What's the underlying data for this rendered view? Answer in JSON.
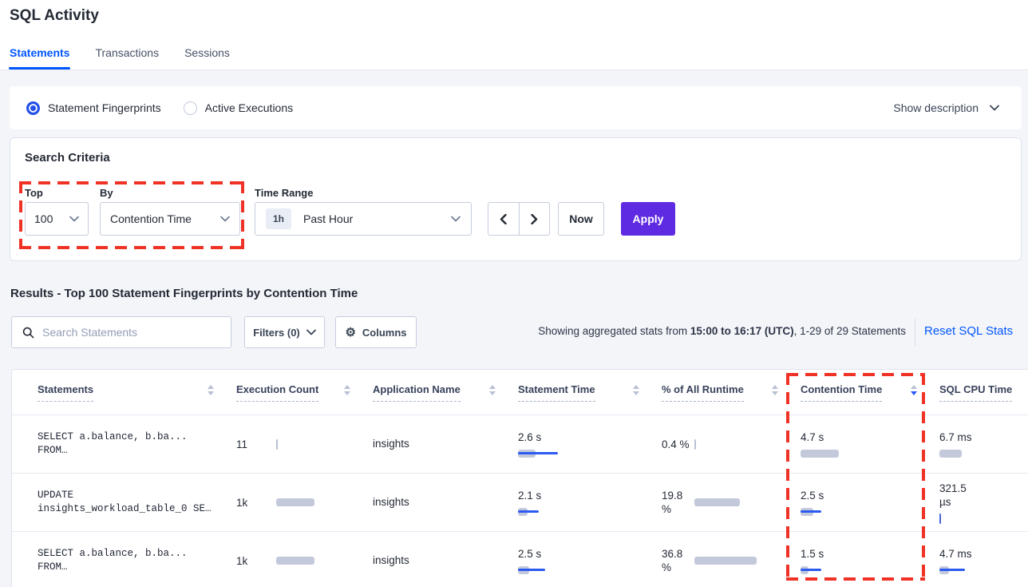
{
  "page": {
    "title": "SQL Activity"
  },
  "tabs": [
    {
      "label": "Statements",
      "active": true
    },
    {
      "label": "Transactions",
      "active": false
    },
    {
      "label": "Sessions",
      "active": false
    }
  ],
  "view_toggle": {
    "options": [
      {
        "label": "Statement Fingerprints",
        "selected": true
      },
      {
        "label": "Active Executions",
        "selected": false
      }
    ],
    "show_description_label": "Show description"
  },
  "search_criteria": {
    "title": "Search Criteria",
    "top": {
      "label": "Top",
      "value": "100"
    },
    "by": {
      "label": "By",
      "value": "Contention Time"
    },
    "time_range": {
      "label": "Time Range",
      "badge": "1h",
      "value": "Past Hour"
    },
    "now_label": "Now",
    "apply_label": "Apply"
  },
  "results": {
    "heading": "Results - Top 100 Statement Fingerprints by Contention Time",
    "search_placeholder": "Search Statements",
    "filters_label": "Filters (0)",
    "columns_label": "Columns",
    "stats": {
      "prefix": "Showing aggregated stats from ",
      "range": "15:00 to 16:17 (UTC)",
      "suffix": ", 1-29 of 29 Statements"
    },
    "reset_label": "Reset SQL Stats"
  },
  "table": {
    "headers": [
      {
        "label": "Statements",
        "sort": "none"
      },
      {
        "label": "Execution Count",
        "sort": "none"
      },
      {
        "label": "Application Name",
        "sort": "none"
      },
      {
        "label": "Statement Time",
        "sort": "none"
      },
      {
        "label": "% of All Runtime",
        "sort": "none"
      },
      {
        "label": "Contention Time",
        "sort": "desc"
      },
      {
        "label": "SQL CPU Time",
        "sort": "none"
      }
    ],
    "rows": [
      {
        "stmt1": "SELECT a.balance, b.ba...",
        "stmt2": "FROM…",
        "exec": "11",
        "exec_bar": {
          "t": "gray"
        },
        "app": "insights",
        "stime": "2.6 s",
        "stime_bar": {
          "g": 22,
          "b": 50
        },
        "runtime": "0.4 %",
        "runtime_bar": {
          "t": "gray"
        },
        "cont": "4.7 s",
        "cont_bar": {
          "g": 48
        },
        "cpu": "6.7 ms",
        "cpu_bar": {
          "g": 28
        }
      },
      {
        "stmt1": "UPDATE",
        "stmt2": "insights_workload_table_0 SE…",
        "exec": "1k",
        "exec_bar": {
          "g": 48
        },
        "app": "insights",
        "stime": "2.1 s",
        "stime_bar": {
          "g": 12,
          "b": 26
        },
        "runtime": "19.8\n%",
        "runtime_bar": {
          "g": 57
        },
        "cont": "2.5 s",
        "cont_bar": {
          "g": 16,
          "b": 26
        },
        "cpu": "321.5\nµs",
        "cpu_bar": {
          "t": "blue"
        }
      },
      {
        "stmt1": "SELECT a.balance, b.ba...",
        "stmt2": "FROM…",
        "exec": "1k",
        "exec_bar": {
          "g": 48
        },
        "app": "insights",
        "stime": "2.5 s",
        "stime_bar": {
          "g": 14,
          "b": 34
        },
        "runtime": "36.8\n%",
        "runtime_bar": {
          "g": 78
        },
        "cont": "1.5 s",
        "cont_bar": {
          "g": 10,
          "b": 26
        },
        "cpu": "4.7 ms",
        "cpu_bar": {
          "g": 12,
          "b": 32
        }
      }
    ]
  },
  "icons": {
    "gear": "⚙"
  },
  "colors": {
    "accent_blue": "#0055ff",
    "apply_purple": "#5f2be2",
    "annotation_red": "#f03226",
    "bar_gray": "#c3c9db",
    "bar_blue": "#2b5af0",
    "tick_gray": "#b9c1d6",
    "tick_blue": "#4a66d8",
    "active_sort_blue": "#2458ff"
  }
}
